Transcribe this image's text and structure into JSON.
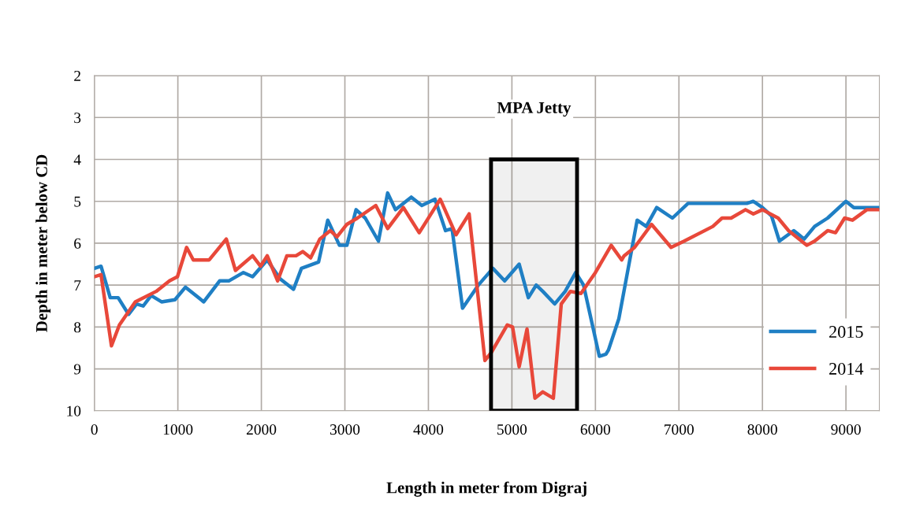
{
  "chart_data": {
    "type": "line",
    "xlabel": "Length in meter from Digraj",
    "ylabel": "Depth in meter below CD",
    "xlim": [
      0,
      9400
    ],
    "xticks": [
      0,
      1000,
      2000,
      3000,
      4000,
      5000,
      6000,
      7000,
      8000,
      9000
    ],
    "ylim": [
      10,
      2
    ],
    "yticks": [
      2,
      3,
      4,
      5,
      6,
      7,
      8,
      9,
      10
    ],
    "grid": true,
    "legend": "lower right",
    "bands": [
      {
        "axis": "x",
        "from": 4750,
        "to": 5780,
        "label": "MPA Jetty",
        "color": "#000000"
      }
    ],
    "series": [
      {
        "name": "2015",
        "color": "#1f7fc4",
        "x": [
          0,
          80,
          190,
          285,
          410,
          505,
          585,
          680,
          805,
          965,
          1090,
          1310,
          1500,
          1610,
          1785,
          1895,
          2070,
          2225,
          2385,
          2480,
          2685,
          2795,
          2935,
          3024,
          3134,
          3244,
          3402,
          3512,
          3606,
          3795,
          3921,
          4079,
          4205,
          4283,
          4409,
          4598,
          4772,
          4913,
          5087,
          5197,
          5291,
          5370,
          5512,
          5638,
          5764,
          5858,
          6047,
          6126,
          6156,
          6281,
          6500,
          6609,
          6734,
          6922,
          7109,
          7813,
          7891,
          8000,
          8109,
          8203,
          8375,
          8500,
          8625,
          8781,
          9000,
          9094,
          9391
        ],
        "values": [
          6.6,
          6.55,
          7.3,
          7.3,
          7.7,
          7.45,
          7.5,
          7.25,
          7.4,
          7.35,
          7.05,
          7.4,
          6.9,
          6.9,
          6.7,
          6.8,
          6.4,
          6.85,
          7.1,
          6.6,
          6.45,
          5.45,
          6.05,
          6.05,
          5.2,
          5.4,
          5.95,
          4.8,
          5.2,
          4.9,
          5.1,
          4.95,
          5.7,
          5.65,
          7.55,
          7.0,
          6.6,
          6.9,
          6.5,
          7.3,
          7.0,
          7.15,
          7.45,
          7.15,
          6.7,
          7.0,
          8.7,
          8.65,
          8.55,
          7.8,
          5.45,
          5.6,
          5.15,
          5.4,
          5.05,
          5.05,
          5.0,
          5.15,
          5.35,
          5.95,
          5.7,
          5.9,
          5.6,
          5.4,
          5.0,
          5.15,
          5.15
        ]
      },
      {
        "name": "2014",
        "color": "#e8483a",
        "x": [
          0,
          80,
          205,
          300,
          490,
          740,
          900,
          995,
          1105,
          1185,
          1375,
          1580,
          1690,
          1895,
          1990,
          2070,
          2195,
          2305,
          2415,
          2495,
          2590,
          2700,
          2825,
          2905,
          3024,
          3150,
          3370,
          3512,
          3701,
          3890,
          4142,
          4220,
          4331,
          4488,
          4677,
          4756,
          4945,
          5008,
          5087,
          5181,
          5276,
          5370,
          5496,
          5591,
          5701,
          5827,
          6000,
          6189,
          6315,
          6344,
          6469,
          6672,
          6906,
          7063,
          7406,
          7516,
          7625,
          7797,
          7891,
          8000,
          8188,
          8313,
          8531,
          8625,
          8781,
          8875,
          8984,
          9078,
          9250,
          9391
        ],
        "values": [
          6.8,
          6.75,
          8.45,
          7.95,
          7.4,
          7.15,
          6.9,
          6.8,
          6.1,
          6.4,
          6.4,
          5.9,
          6.65,
          6.3,
          6.55,
          6.3,
          6.9,
          6.3,
          6.3,
          6.2,
          6.35,
          5.9,
          5.7,
          5.85,
          5.55,
          5.4,
          5.1,
          5.65,
          5.15,
          5.75,
          4.95,
          5.3,
          5.8,
          5.3,
          8.8,
          8.6,
          7.95,
          8.0,
          8.95,
          8.05,
          9.7,
          9.55,
          9.7,
          7.45,
          7.15,
          7.2,
          6.7,
          6.05,
          6.4,
          6.3,
          6.1,
          5.55,
          6.1,
          5.95,
          5.6,
          5.4,
          5.4,
          5.2,
          5.3,
          5.2,
          5.4,
          5.7,
          6.05,
          5.95,
          5.7,
          5.75,
          5.4,
          5.45,
          5.2,
          5.2
        ]
      }
    ]
  }
}
